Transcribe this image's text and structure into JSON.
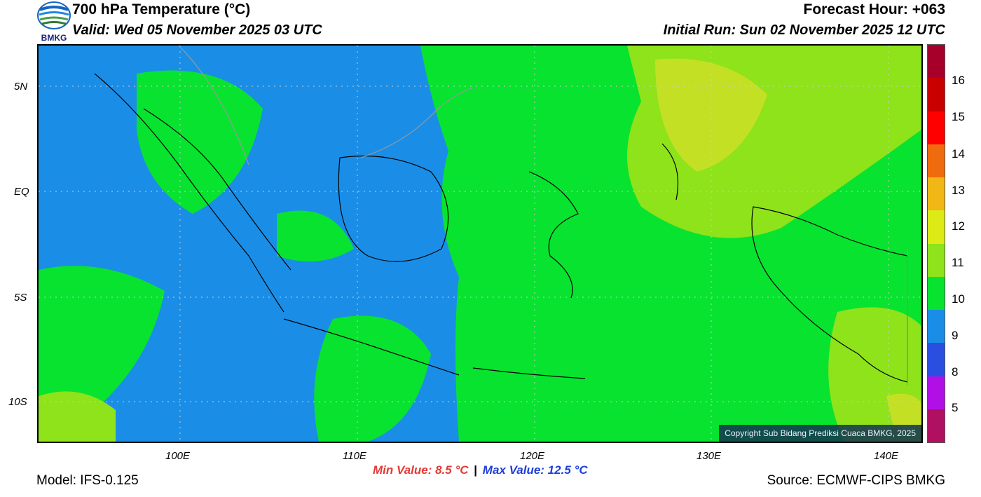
{
  "logo": {
    "text": "BMKG",
    "colors": [
      "#1565c0",
      "#43a047"
    ]
  },
  "header": {
    "title": "700 hPa Temperature (°C)",
    "valid": "Valid: Wed 05 November 2025 03 UTC",
    "forecast_hour": "Forecast Hour: +063",
    "initial_run": "Initial Run: Sun 02 November 2025 12 UTC"
  },
  "map": {
    "lon_ticks": [
      "100E",
      "110E",
      "120E",
      "130E",
      "140E"
    ],
    "lat_ticks": [
      "5N",
      "EQ",
      "5S",
      "10S"
    ],
    "copyright": "Copyright Sub Bidang Prediksi Cuaca BMKG, 2025",
    "field_colors": {
      "c9": "#1a8ee6",
      "c10": "#08e32f",
      "c11": "#8ee31a",
      "c12": "#c3e025"
    }
  },
  "colorbar": {
    "labels": [
      "16",
      "15",
      "14",
      "13",
      "12",
      "11",
      "10",
      "9",
      "8",
      "5"
    ],
    "bands": [
      "#a6002a",
      "#c90000",
      "#ff0000",
      "#f06b0d",
      "#f0b715",
      "#dcea16",
      "#8ee31a",
      "#08e32f",
      "#1a8ee6",
      "#2a4fe0",
      "#b010e6",
      "#b01060"
    ]
  },
  "stats": {
    "min_label": "Min Value: 8.5",
    "min_unit": "°C",
    "separator": "|",
    "max_label": "Max Value: 12.5",
    "max_unit": "°C",
    "min_color": "#e53935",
    "max_color": "#1e3fd6"
  },
  "footer": {
    "model": "Model: IFS-0.125",
    "source": "Source: ECMWF-CIPS BMKG"
  }
}
